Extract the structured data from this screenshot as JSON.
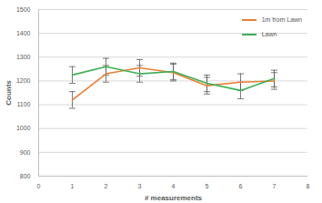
{
  "chart_data": {
    "type": "line",
    "x_label": "# measurements",
    "y_label": "Counts",
    "x": [
      1,
      2,
      3,
      4,
      5,
      6,
      7
    ],
    "series": [
      {
        "name": "1m from Lawn",
        "color": "#ed7d31",
        "values": [
          1120,
          1230,
          1255,
          1235,
          1180,
          1195,
          1200
        ],
        "errors": [
          35,
          35,
          35,
          35,
          35,
          35,
          35
        ]
      },
      {
        "name": "Lawn",
        "color": "#3cb054",
        "values": [
          1225,
          1260,
          1230,
          1240,
          1190,
          1160,
          1210
        ],
        "errors": [
          35,
          35,
          35,
          35,
          35,
          35,
          35
        ]
      }
    ],
    "xlim": [
      0,
      8
    ],
    "xticks": [
      0,
      1,
      2,
      3,
      4,
      5,
      6,
      7,
      8
    ],
    "ylim": [
      800,
      1500
    ],
    "yticks": [
      800,
      900,
      1000,
      1100,
      1200,
      1300,
      1400,
      1500
    ],
    "grid": true,
    "legend": "top-right"
  }
}
